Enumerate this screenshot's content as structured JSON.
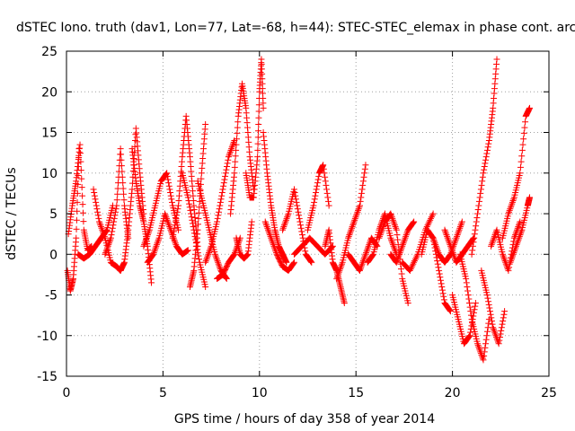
{
  "chart_data": {
    "type": "scatter",
    "title": "dSTEC Iono. truth (dav1, Lon=77, Lat=-68, h=44): STEC-STEC_elemax in phase cont. arc",
    "xlabel": "GPS time / hours of day 358 of year 2014",
    "ylabel": "dSTEC  / TECUs",
    "xlim": [
      0,
      25
    ],
    "ylim": [
      -15,
      25
    ],
    "xticks": [
      0,
      5,
      10,
      15,
      20,
      25
    ],
    "yticks": [
      -15,
      -10,
      -5,
      0,
      5,
      10,
      15,
      20,
      25
    ],
    "grid": true,
    "marker": "+",
    "color": "#ff0000",
    "series": [
      {
        "name": "STEC-STEC_elemax",
        "arcs": [
          {
            "x": [
              0.05,
              0.2,
              0.35,
              0.5,
              0.65
            ],
            "y": [
              -2,
              -4.5,
              -3,
              2,
              13
            ]
          },
          {
            "x": [
              0.1,
              0.3,
              0.5,
              0.7,
              0.9,
              1.1,
              1.3
            ],
            "y": [
              2.5,
              6,
              9,
              13.5,
              3,
              0.5,
              1
            ]
          },
          {
            "x": [
              0.6,
              0.9,
              1.2,
              1.5,
              1.8,
              2.1,
              2.4
            ],
            "y": [
              0,
              -0.5,
              0,
              1,
              2,
              3,
              6
            ]
          },
          {
            "x": [
              1.4,
              1.7,
              2.0,
              2.3,
              2.6,
              2.8
            ],
            "y": [
              8,
              4,
              2,
              -1,
              -1.5,
              -2
            ]
          },
          {
            "x": [
              2.0,
              2.3,
              2.6,
              2.8,
              3.0,
              3.2
            ],
            "y": [
              0,
              2,
              6,
              13,
              6,
              2
            ]
          },
          {
            "x": [
              2.8,
              3.0,
              3.2,
              3.4,
              3.6,
              3.8,
              4.0
            ],
            "y": [
              -2,
              -1,
              3,
              8,
              15.5,
              10,
              5
            ]
          },
          {
            "x": [
              3.4,
              3.6,
              3.8,
              4.0,
              4.2,
              4.4
            ],
            "y": [
              13,
              9,
              6,
              4,
              1,
              -3.5
            ]
          },
          {
            "x": [
              4.0,
              4.3,
              4.6,
              4.9,
              5.2,
              5.5,
              5.8
            ],
            "y": [
              1,
              3,
              6,
              9,
              10,
              6,
              3
            ]
          },
          {
            "x": [
              4.2,
              4.5,
              4.8,
              5.1,
              5.4,
              5.7,
              6.0,
              6.3
            ],
            "y": [
              -1,
              0,
              2,
              5,
              3,
              1,
              0,
              0.5
            ]
          },
          {
            "x": [
              5.5,
              5.8,
              6.0,
              6.2,
              6.4,
              6.6,
              6.8
            ],
            "y": [
              2,
              6,
              12,
              17,
              12,
              6,
              1
            ]
          },
          {
            "x": [
              6.0,
              6.3,
              6.6,
              6.9,
              7.2
            ],
            "y": [
              10,
              7,
              3,
              -1,
              -4
            ]
          },
          {
            "x": [
              6.4,
              6.6,
              6.8,
              7.0,
              7.2
            ],
            "y": [
              -4,
              -2,
              3,
              10,
              16
            ]
          },
          {
            "x": [
              6.8,
              7.1,
              7.4,
              7.7,
              8.0,
              8.3
            ],
            "y": [
              9,
              6,
              3,
              0,
              -2,
              -3
            ]
          },
          {
            "x": [
              7.2,
              7.5,
              7.8,
              8.1,
              8.4,
              8.7
            ],
            "y": [
              -1,
              1,
              4,
              8,
              12,
              14
            ]
          },
          {
            "x": [
              7.8,
              8.1,
              8.4,
              8.7,
              9.0
            ],
            "y": [
              -3,
              -2.5,
              -1,
              0,
              2
            ]
          },
          {
            "x": [
              8.5,
              8.7,
              8.9,
              9.1,
              9.3,
              9.5,
              9.7
            ],
            "y": [
              5,
              10,
              17,
              21,
              18,
              12,
              8
            ]
          },
          {
            "x": [
              8.8,
              9.0,
              9.2,
              9.4,
              9.6
            ],
            "y": [
              2,
              0,
              -0.5,
              0,
              4
            ]
          },
          {
            "x": [
              9.3,
              9.5,
              9.7,
              9.9,
              10.0,
              10.1,
              10.2
            ],
            "y": [
              10,
              7,
              7,
              12,
              20,
              24,
              18
            ]
          },
          {
            "x": [
              10.2,
              10.4,
              10.6,
              10.8,
              11.0,
              11.2,
              11.4
            ],
            "y": [
              15,
              10,
              6,
              3,
              1,
              0,
              -1
            ]
          },
          {
            "x": [
              10.3,
              10.6,
              10.9,
              11.2,
              11.5,
              11.8
            ],
            "y": [
              4,
              2,
              0,
              -1.5,
              -2,
              -1
            ]
          },
          {
            "x": [
              11.2,
              11.5,
              11.8,
              12.1,
              12.4,
              12.7
            ],
            "y": [
              3,
              5,
              8,
              4,
              0,
              -1
            ]
          },
          {
            "x": [
              11.8,
              12.2,
              12.6,
              13.0,
              13.4,
              13.8
            ],
            "y": [
              0,
              1,
              2,
              1,
              0,
              1
            ]
          },
          {
            "x": [
              12.5,
              12.8,
              13.1,
              13.3,
              13.6
            ],
            "y": [
              3,
              6,
              10,
              11,
              6
            ]
          },
          {
            "x": [
              13.4,
              13.6,
              13.8,
              14.0,
              14.2,
              14.4
            ],
            "y": [
              1,
              3,
              -1,
              -2,
              -4,
              -6
            ]
          },
          {
            "x": [
              14.0,
              14.3,
              14.6,
              14.9,
              15.2,
              15.5
            ],
            "y": [
              -3,
              -1,
              2,
              4,
              6,
              11
            ]
          },
          {
            "x": [
              14.6,
              14.9,
              15.2,
              15.5,
              15.8,
              16.1
            ],
            "y": [
              0,
              -1,
              -2,
              0,
              2,
              1
            ]
          },
          {
            "x": [
              15.6,
              15.9,
              16.2,
              16.5,
              16.8,
              17.1
            ],
            "y": [
              -1,
              0,
              3,
              5,
              2,
              0
            ]
          },
          {
            "x": [
              16.2,
              16.5,
              16.8,
              17.1,
              17.4,
              17.7
            ],
            "y": [
              2,
              4,
              5,
              3,
              -3,
              -6
            ]
          },
          {
            "x": [
              16.8,
              17.1,
              17.4,
              17.7,
              18.0
            ],
            "y": [
              0,
              -1,
              1,
              3,
              4
            ]
          },
          {
            "x": [
              17.4,
              17.8,
              18.2,
              18.6,
              19.0
            ],
            "y": [
              -1,
              -2,
              0,
              3,
              5
            ]
          },
          {
            "x": [
              18.4,
              18.7,
              19.0,
              19.3,
              19.6,
              19.9
            ],
            "y": [
              0,
              3,
              2,
              -2,
              -6,
              -7
            ]
          },
          {
            "x": [
              19.0,
              19.3,
              19.6,
              19.9,
              20.2,
              20.5
            ],
            "y": [
              2,
              0,
              -1,
              0,
              2,
              4
            ]
          },
          {
            "x": [
              19.6,
              19.9,
              20.2,
              20.5,
              20.8,
              21.1
            ],
            "y": [
              3,
              1,
              -1,
              0,
              1,
              2
            ]
          },
          {
            "x": [
              20.0,
              20.3,
              20.6,
              20.9,
              21.2
            ],
            "y": [
              -5,
              -8,
              -11,
              -10,
              -6
            ]
          },
          {
            "x": [
              20.4,
              20.7,
              21.0,
              21.3,
              21.6,
              21.9
            ],
            "y": [
              0,
              -3,
              -8,
              -11,
              -13,
              -8
            ]
          },
          {
            "x": [
              21.0,
              21.3,
              21.6,
              21.9,
              22.1,
              22.3
            ],
            "y": [
              0,
              5,
              10,
              14,
              18,
              24
            ]
          },
          {
            "x": [
              21.5,
              21.8,
              22.1,
              22.4,
              22.7
            ],
            "y": [
              -2,
              -5,
              -9,
              -11,
              -7
            ]
          },
          {
            "x": [
              22.0,
              22.3,
              22.6,
              22.9,
              23.2,
              23.5
            ],
            "y": [
              1,
              3,
              0,
              -2,
              2,
              4
            ]
          },
          {
            "x": [
              22.6,
              22.9,
              23.2,
              23.5,
              23.8,
              24.0
            ],
            "y": [
              2,
              5,
              7,
              10,
              17,
              18
            ]
          },
          {
            "x": [
              23.0,
              23.3,
              23.6,
              23.9,
              24.0
            ],
            "y": [
              -1,
              1,
              3,
              6,
              7
            ]
          }
        ]
      }
    ]
  }
}
